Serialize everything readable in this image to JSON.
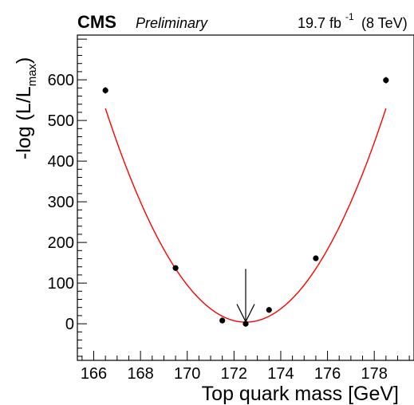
{
  "header": {
    "experiment": "CMS",
    "status": "Preliminary",
    "lumi_value": "19.7 fb",
    "lumi_exponent": "-1",
    "energy": "(8 TeV)"
  },
  "chart_data": {
    "type": "scatter",
    "xlabel": "Top quark mass [GeV]",
    "ylabel_main": "-log (L/L",
    "ylabel_sub": "max",
    "ylabel_close": ")",
    "xlim": [
      165.3,
      179.7
    ],
    "ylim": [
      -90,
      710
    ],
    "x_ticks": [
      166,
      168,
      170,
      172,
      174,
      176,
      178
    ],
    "y_ticks": [
      0,
      100,
      200,
      300,
      400,
      500,
      600
    ],
    "grid": false,
    "series": [
      {
        "points": [
          {
            "x": 166.5,
            "y": 574,
            "err": 8
          },
          {
            "x": 169.5,
            "y": 137,
            "err": 7
          },
          {
            "x": 171.5,
            "y": 8,
            "err": 7
          },
          {
            "x": 172.5,
            "y": 0,
            "err": 7
          },
          {
            "x": 173.5,
            "y": 34,
            "err": 7
          },
          {
            "x": 175.5,
            "y": 161,
            "err": 7
          },
          {
            "x": 178.5,
            "y": 599,
            "err": 8
          }
        ]
      }
    ],
    "fit": {
      "type": "parabola",
      "color": "#ff0000",
      "minimum_x": 172.5,
      "minimum_y": 4,
      "coefficient": 14.6,
      "x_range": [
        166.5,
        178.5
      ]
    },
    "annotation": {
      "type": "arrow",
      "x": 172.5,
      "y_from": 135,
      "y_to": 5
    },
    "colors": {
      "points": "#000000",
      "fit": "#ff0000",
      "axes": "#000000"
    }
  }
}
